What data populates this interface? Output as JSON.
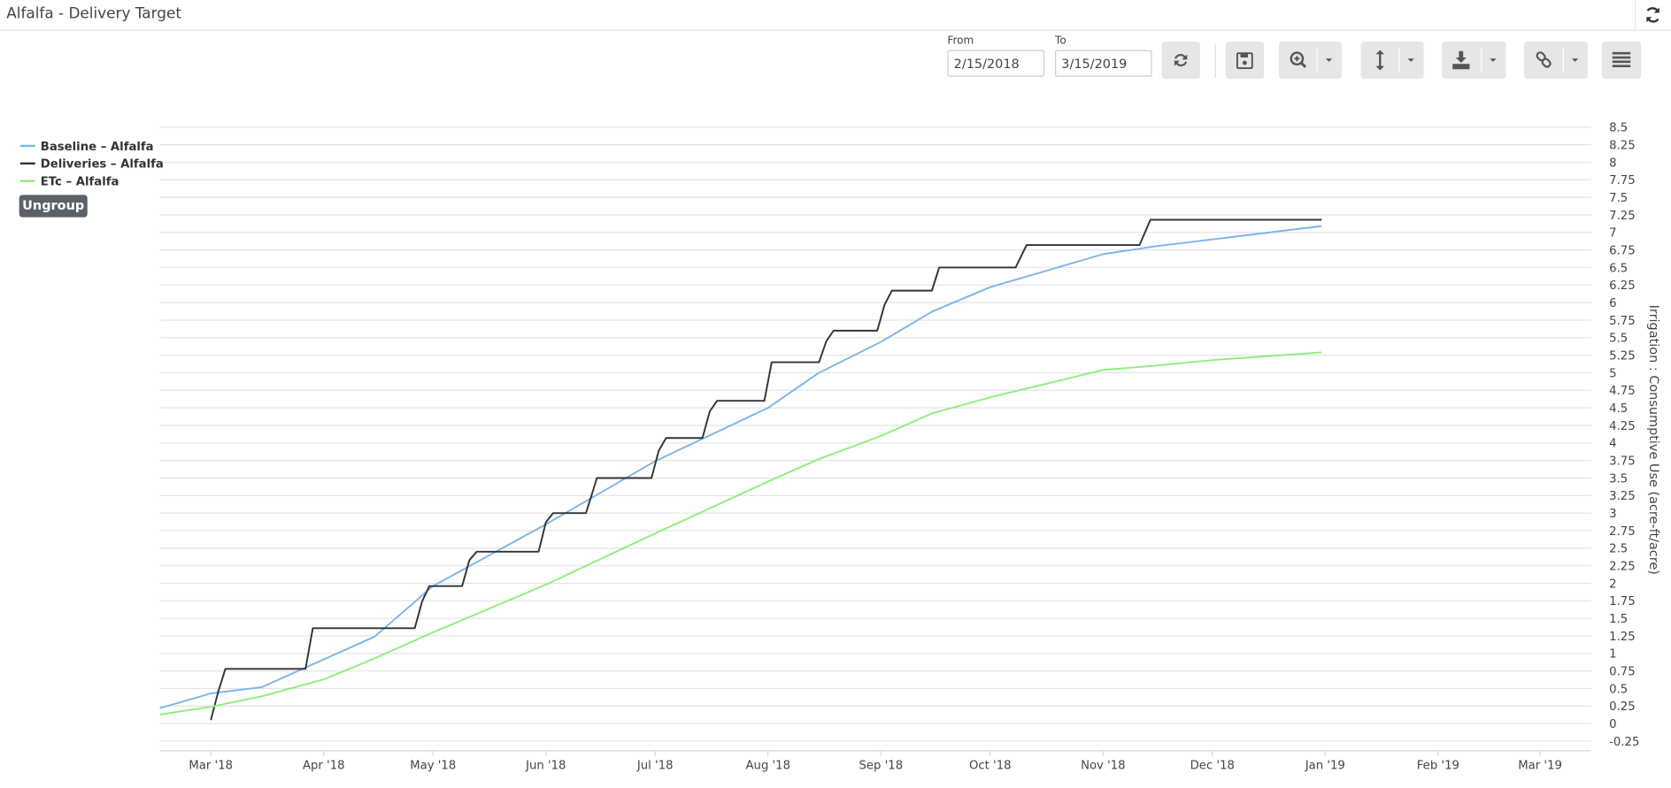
{
  "header": {
    "title": "Alfalfa - Delivery Target"
  },
  "toolbar": {
    "from_label": "From",
    "from_value": "2/15/2018",
    "to_label": "To",
    "to_value": "3/15/2019"
  },
  "legend_button": "Ungroup",
  "chart_data": {
    "type": "line",
    "y_label": "Irrigation : Consumptive Use (acre-ft/acre)",
    "xlim": [
      "2018-02-15",
      "2019-03-15"
    ],
    "xticks": [
      {
        "value": "2018-03-01",
        "label": "Mar '18"
      },
      {
        "value": "2018-04-01",
        "label": "Apr '18"
      },
      {
        "value": "2018-05-01",
        "label": "May '18"
      },
      {
        "value": "2018-06-01",
        "label": "Jun '18"
      },
      {
        "value": "2018-07-01",
        "label": "Jul '18"
      },
      {
        "value": "2018-08-01",
        "label": "Aug '18"
      },
      {
        "value": "2018-09-01",
        "label": "Sep '18"
      },
      {
        "value": "2018-10-01",
        "label": "Oct '18"
      },
      {
        "value": "2018-11-01",
        "label": "Nov '18"
      },
      {
        "value": "2018-12-01",
        "label": "Dec '18"
      },
      {
        "value": "2019-01-01",
        "label": "Jan '19"
      },
      {
        "value": "2019-02-01",
        "label": "Feb '19"
      },
      {
        "value": "2019-03-01",
        "label": "Mar '19"
      }
    ],
    "ylim": [
      -0.25,
      8.5
    ],
    "yticks": [
      -0.25,
      0,
      0.25,
      0.5,
      0.75,
      1,
      1.25,
      1.5,
      1.75,
      2,
      2.25,
      2.5,
      2.75,
      3,
      3.25,
      3.5,
      3.75,
      4,
      4.25,
      4.5,
      4.75,
      5,
      5.25,
      5.5,
      5.75,
      6,
      6.25,
      6.5,
      6.75,
      7,
      7.25,
      7.5,
      7.75,
      8,
      8.25,
      8.5
    ],
    "y_axis_side": "right",
    "grid": true,
    "legend": "top-left",
    "series": [
      {
        "name": "Baseline – Alfalfa",
        "color": "#7cb5ec",
        "x": [
          "2018-02-15",
          "2018-03-01",
          "2018-03-15",
          "2018-04-15",
          "2018-05-01",
          "2018-06-01",
          "2018-07-01",
          "2018-08-01",
          "2018-08-15",
          "2018-09-01",
          "2018-09-15",
          "2018-10-01",
          "2018-11-01",
          "2018-11-15",
          "2018-12-01",
          "2018-12-31"
        ],
        "values": [
          0.22,
          0.43,
          0.52,
          1.24,
          1.96,
          2.84,
          3.74,
          4.5,
          5.0,
          5.44,
          5.87,
          6.22,
          6.69,
          6.8,
          6.9,
          7.09
        ]
      },
      {
        "name": "Deliveries – Alfalfa",
        "color": "#333333",
        "x": [
          "2018-03-01",
          "2018-03-03",
          "2018-03-05",
          "2018-03-27",
          "2018-03-29",
          "2018-04-26",
          "2018-04-28",
          "2018-04-30",
          "2018-05-09",
          "2018-05-11",
          "2018-05-13",
          "2018-05-30",
          "2018-06-01",
          "2018-06-03",
          "2018-06-12",
          "2018-06-14",
          "2018-06-15",
          "2018-06-30",
          "2018-07-02",
          "2018-07-04",
          "2018-07-14",
          "2018-07-16",
          "2018-07-18",
          "2018-07-31",
          "2018-08-02",
          "2018-08-15",
          "2018-08-17",
          "2018-08-19",
          "2018-08-31",
          "2018-09-02",
          "2018-09-04",
          "2018-09-15",
          "2018-09-17",
          "2018-10-08",
          "2018-10-11",
          "2018-11-11",
          "2018-11-14",
          "2018-12-31"
        ],
        "values": [
          0.05,
          0.45,
          0.78,
          0.78,
          1.36,
          1.36,
          1.74,
          1.96,
          1.96,
          2.33,
          2.45,
          2.45,
          2.87,
          3.0,
          3.0,
          3.33,
          3.5,
          3.5,
          3.89,
          4.07,
          4.07,
          4.45,
          4.6,
          4.6,
          5.15,
          5.15,
          5.45,
          5.6,
          5.6,
          5.97,
          6.17,
          6.17,
          6.5,
          6.5,
          6.82,
          6.82,
          7.18,
          7.18
        ]
      },
      {
        "name": "ETc – Alfalfa",
        "color": "#90ed7d",
        "x": [
          "2018-02-15",
          "2018-03-01",
          "2018-03-15",
          "2018-04-01",
          "2018-04-15",
          "2018-05-01",
          "2018-06-01",
          "2018-07-01",
          "2018-08-01",
          "2018-08-15",
          "2018-09-01",
          "2018-09-15",
          "2018-10-01",
          "2018-11-01",
          "2018-11-15",
          "2018-12-01",
          "2018-12-31"
        ],
        "values": [
          0.13,
          0.24,
          0.39,
          0.63,
          0.93,
          1.3,
          1.98,
          2.71,
          3.45,
          3.77,
          4.1,
          4.42,
          4.65,
          5.04,
          5.1,
          5.18,
          5.29
        ]
      }
    ]
  }
}
